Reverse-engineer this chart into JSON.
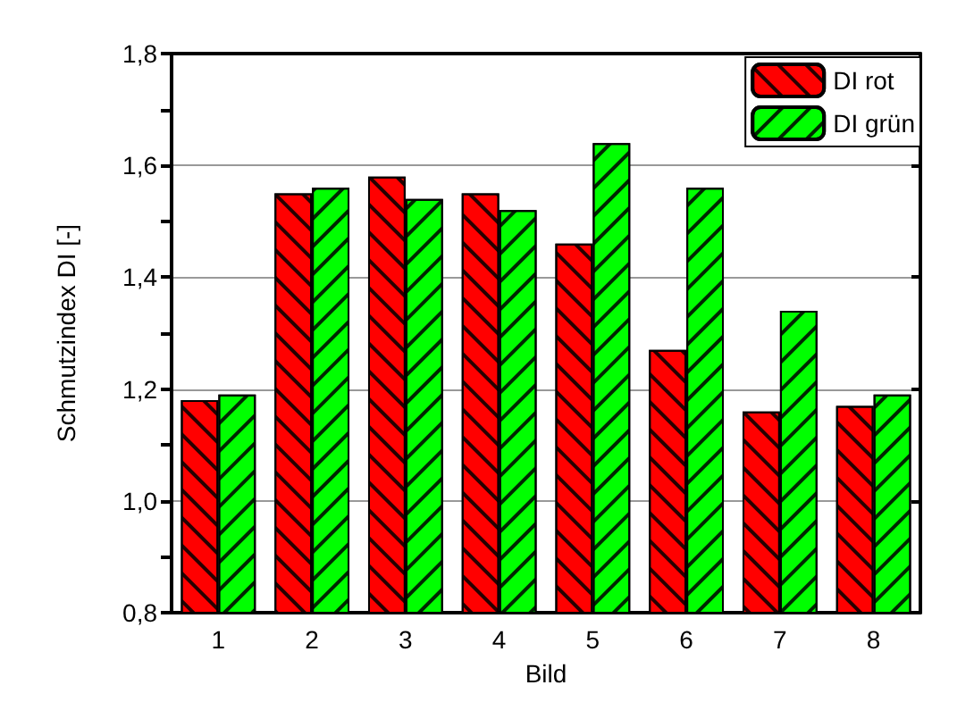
{
  "chart_data": {
    "type": "bar",
    "xlabel": "Bild",
    "ylabel": "Schmutzindex DI [-]",
    "categories": [
      "1",
      "2",
      "3",
      "4",
      "5",
      "6",
      "7",
      "8"
    ],
    "series": [
      {
        "name": "DI rot",
        "color": "#ff0000",
        "values": [
          1.18,
          1.55,
          1.58,
          1.55,
          1.46,
          1.27,
          1.16,
          1.17
        ]
      },
      {
        "name": "DI grün",
        "color": "#00ff00",
        "values": [
          1.19,
          1.56,
          1.54,
          1.52,
          1.64,
          1.56,
          1.34,
          1.19
        ]
      }
    ],
    "ylim": [
      0.8,
      1.8
    ],
    "yticks": [
      {
        "value": 0.8,
        "label": "0,8"
      },
      {
        "value": 0.9,
        "label": null
      },
      {
        "value": 1.0,
        "label": "1,0"
      },
      {
        "value": 1.1,
        "label": null
      },
      {
        "value": 1.2,
        "label": "1,2"
      },
      {
        "value": 1.3,
        "label": null
      },
      {
        "value": 1.4,
        "label": "1,4"
      },
      {
        "value": 1.5,
        "label": null
      },
      {
        "value": 1.6,
        "label": "1,6"
      },
      {
        "value": 1.7,
        "label": null
      },
      {
        "value": 1.8,
        "label": "1,8"
      }
    ],
    "grid": "y",
    "legend": "top right"
  }
}
